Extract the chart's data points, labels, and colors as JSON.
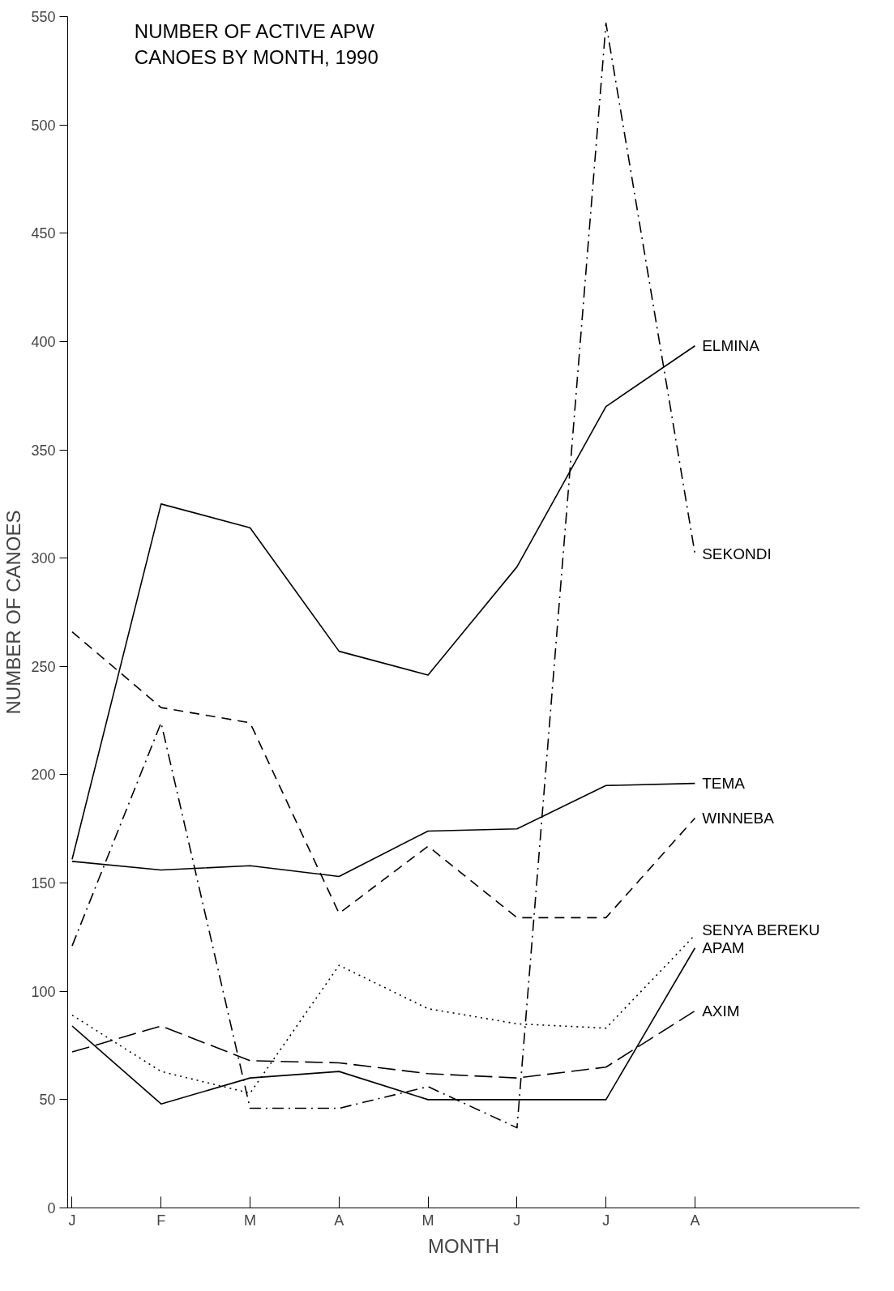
{
  "chart_data": {
    "type": "line",
    "title": "NUMBER OF ACTIVE APW\nCANOES BY MONTH,  1990",
    "xlabel": "MONTH",
    "ylabel": "NUMBER OF CANOES",
    "categories": [
      "J",
      "F",
      "M",
      "A",
      "M",
      "J",
      "J",
      "A"
    ],
    "ylim": [
      0,
      550
    ],
    "yticks": [
      0,
      50,
      100,
      150,
      200,
      250,
      300,
      350,
      400,
      450,
      500,
      550
    ],
    "grid": false,
    "marker": "none",
    "series": [
      {
        "name": "ELMINA",
        "color": "#000000",
        "line_style": "solid",
        "values": [
          161,
          325,
          314,
          257,
          246,
          296,
          370,
          398
        ]
      },
      {
        "name": "SEKONDI",
        "color": "#000000",
        "line_style": "dashdot",
        "values": [
          121,
          224,
          46,
          46,
          56,
          37,
          547,
          302
        ]
      },
      {
        "name": "TEMA",
        "color": "#000000",
        "line_style": "solid",
        "values": [
          160,
          156,
          158,
          153,
          174,
          175,
          195,
          196
        ]
      },
      {
        "name": "WINNEBA",
        "color": "#000000",
        "line_style": "dashed",
        "values": [
          266,
          231,
          224,
          136,
          167,
          134,
          134,
          180
        ]
      },
      {
        "name": "SENYA BEREKU",
        "color": "#000000",
        "line_style": "dotted",
        "values": [
          89,
          63,
          53,
          112,
          92,
          85,
          83,
          126
        ]
      },
      {
        "name": "APAM",
        "color": "#000000",
        "line_style": "solid",
        "values": [
          84,
          48,
          60,
          63,
          50,
          50,
          50,
          120
        ]
      },
      {
        "name": "AXIM",
        "color": "#000000",
        "line_style": "longdash",
        "values": [
          72,
          84,
          68,
          67,
          62,
          60,
          65,
          91
        ]
      }
    ]
  }
}
